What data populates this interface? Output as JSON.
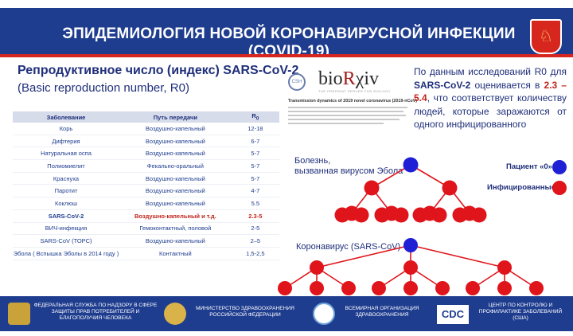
{
  "banner": {
    "title": "ЭПИДЕМИОЛОГИЯ НОВОЙ КОРОНАВИРУСНОЙ ИНФЕКЦИИ (COVID-19)"
  },
  "section": {
    "title": "Репродуктивное число (индекс) SARS-CoV-2",
    "subtitle": "(Basic reproduction number, R0)"
  },
  "table": {
    "headers": [
      "Заболевание",
      "Путь передачи",
      "R"
    ],
    "header_sub": "0",
    "rows": [
      [
        "Корь",
        "Воздушно-капельный",
        "12-18"
      ],
      [
        "Дифтерия",
        "Воздушно-капельный",
        "6-7"
      ],
      [
        "Натуральная оспа",
        "Воздушно-капельный",
        "5-7"
      ],
      [
        "Полиомиелит",
        "Фекально-оральный",
        "5-7"
      ],
      [
        "Краснуха",
        "Воздушно-капельный",
        "5-7"
      ],
      [
        "Паротит",
        "Воздушно-капельный",
        "4-7"
      ],
      [
        "Коклюш",
        "Воздушно-капельный",
        "5.5"
      ],
      [
        "SARS-CoV-2",
        "Воздушно-капельный и т.д.",
        "2.3-5"
      ],
      [
        "ВИЧ-инфекция",
        "Гемоконтактный, половой",
        "2-5"
      ],
      [
        "SARS-CoV (ТОРС)",
        "Воздушно-капельный",
        "2–5"
      ],
      [
        "Эбола ( Вспышка Эболы в 2014 году )",
        "Контактный",
        "1,5-2,5"
      ]
    ],
    "highlight_row": 7
  },
  "biorxiv": {
    "csh": "CSH",
    "logo_pre": "bio",
    "logo_accent": "R",
    "logo_post": "χiv",
    "tagline": "THE PREPRINT SERVER FOR BIOLOGY",
    "paper_title": "Transmission dynamics of 2019 novel coronavirus (2019-nCoV)"
  },
  "r0_text": {
    "p1": "По данным исследований R0 для",
    "virus": "SARS-CoV-2",
    "p2": "оценивается в",
    "range": "2.3 – 5.4",
    "p3": ", что соответствует количеству людей, которые заражаются от одного инфицированного"
  },
  "diagram": {
    "ebola_label_1": "Болезнь,",
    "ebola_label_2": "вызванная вирусом Эбола",
    "corona_label": "Коронавирус (SARS-CoV)",
    "legend_patient": "Пациент «0»",
    "legend_infected": "Инфицированные",
    "color_patient": "#1f1fd6",
    "color_infected": "#e0141b"
  },
  "footer": {
    "rospotreb": "Федеральная служба по надзору в сфере защиты прав потребителей и благополучия человека",
    "minzdrav": "Министерство здравоохранения Российской Федерации",
    "who": "Всемирная организация здравоохранения",
    "cdc_logo": "CDC",
    "cdc": "Центр по контролю и профилактике заболеваний (США)"
  }
}
